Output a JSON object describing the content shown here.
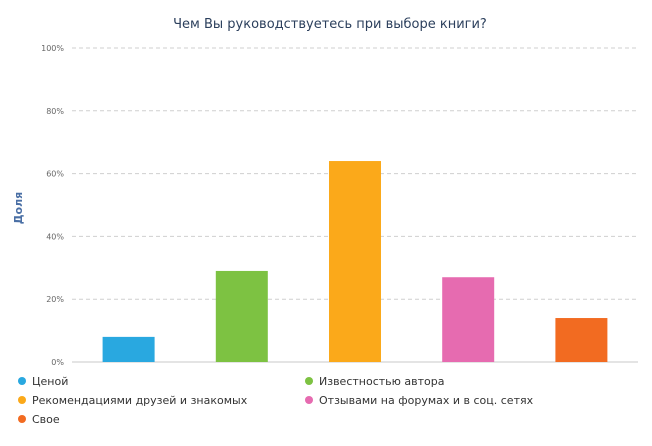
{
  "chart_data": {
    "type": "bar",
    "title": "Чем Вы руководствуетесь при выборе книги?",
    "ylabel": "Доля",
    "xlabel": "",
    "ylim": [
      0,
      100
    ],
    "yticks": [
      "0%",
      "20%",
      "40%",
      "60%",
      "80%",
      "100%"
    ],
    "grid": true,
    "legend_position": "bottom",
    "categories": [
      "Ценой",
      "Известностью автора",
      "Рекомендациями друзей и знакомых",
      "Отзывами на форумах и в соц. сетях",
      "Свое"
    ],
    "values": [
      8,
      29,
      64,
      27,
      14
    ],
    "colors": [
      "#29a8e0",
      "#7dc242",
      "#fba91a",
      "#e66bb0",
      "#f26b21"
    ]
  }
}
